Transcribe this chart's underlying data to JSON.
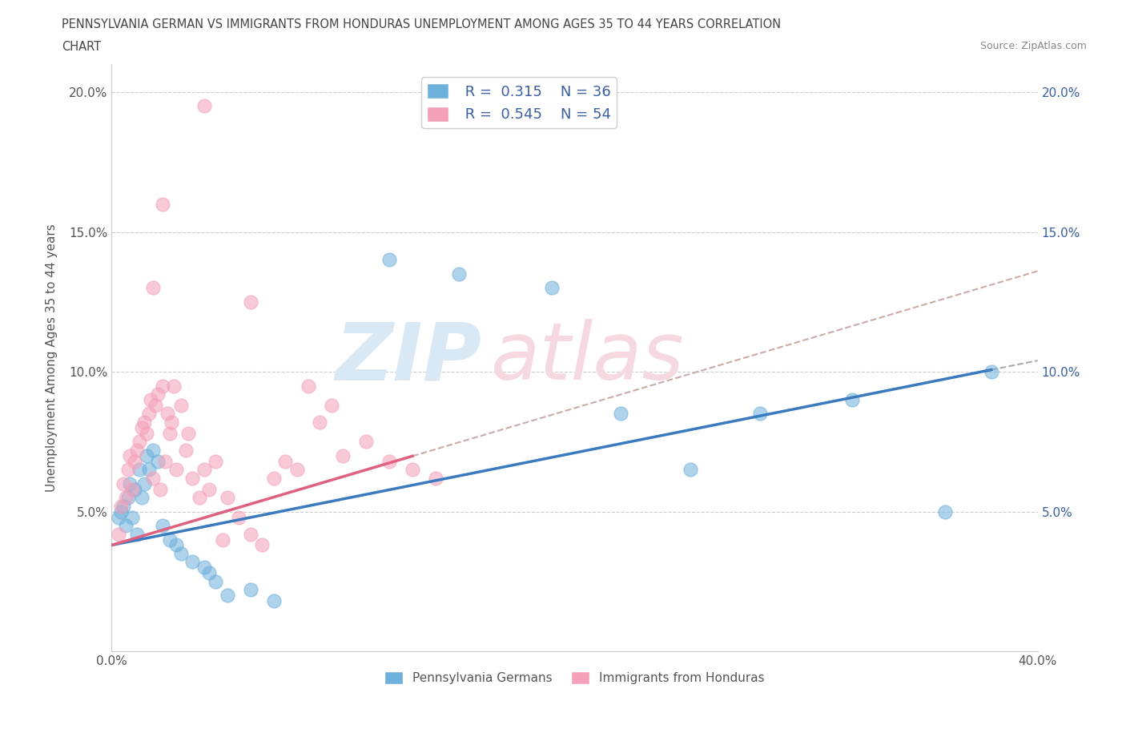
{
  "title_line1": "PENNSYLVANIA GERMAN VS IMMIGRANTS FROM HONDURAS UNEMPLOYMENT AMONG AGES 35 TO 44 YEARS CORRELATION",
  "title_line2": "CHART",
  "source_text": "Source: ZipAtlas.com",
  "ylabel": "Unemployment Among Ages 35 to 44 years",
  "xlim": [
    0.0,
    0.4
  ],
  "ylim": [
    0.0,
    0.21
  ],
  "xticks": [
    0.0,
    0.05,
    0.1,
    0.15,
    0.2,
    0.25,
    0.3,
    0.35,
    0.4
  ],
  "yticks": [
    0.0,
    0.05,
    0.1,
    0.15,
    0.2
  ],
  "blue_color": "#6eb0dc",
  "pink_color": "#f4a0b8",
  "blue_line_color": "#3a7abf",
  "pink_line_color": "#e06080",
  "blue_R": 0.315,
  "blue_N": 36,
  "pink_R": 0.545,
  "pink_N": 54,
  "blue_scatter": [
    [
      0.003,
      0.048
    ],
    [
      0.004,
      0.05
    ],
    [
      0.005,
      0.052
    ],
    [
      0.006,
      0.045
    ],
    [
      0.007,
      0.055
    ],
    [
      0.008,
      0.06
    ],
    [
      0.009,
      0.048
    ],
    [
      0.01,
      0.058
    ],
    [
      0.011,
      0.042
    ],
    [
      0.012,
      0.065
    ],
    [
      0.013,
      0.055
    ],
    [
      0.014,
      0.06
    ],
    [
      0.015,
      0.07
    ],
    [
      0.016,
      0.065
    ],
    [
      0.018,
      0.072
    ],
    [
      0.02,
      0.068
    ],
    [
      0.022,
      0.045
    ],
    [
      0.025,
      0.04
    ],
    [
      0.028,
      0.038
    ],
    [
      0.03,
      0.035
    ],
    [
      0.035,
      0.032
    ],
    [
      0.04,
      0.03
    ],
    [
      0.042,
      0.028
    ],
    [
      0.045,
      0.025
    ],
    [
      0.05,
      0.02
    ],
    [
      0.06,
      0.022
    ],
    [
      0.07,
      0.018
    ],
    [
      0.12,
      0.14
    ],
    [
      0.15,
      0.135
    ],
    [
      0.22,
      0.085
    ],
    [
      0.25,
      0.065
    ],
    [
      0.32,
      0.09
    ],
    [
      0.36,
      0.05
    ],
    [
      0.19,
      0.13
    ],
    [
      0.28,
      0.085
    ],
    [
      0.38,
      0.1
    ]
  ],
  "pink_scatter": [
    [
      0.003,
      0.042
    ],
    [
      0.004,
      0.052
    ],
    [
      0.005,
      0.06
    ],
    [
      0.006,
      0.055
    ],
    [
      0.007,
      0.065
    ],
    [
      0.008,
      0.07
    ],
    [
      0.009,
      0.058
    ],
    [
      0.01,
      0.068
    ],
    [
      0.011,
      0.072
    ],
    [
      0.012,
      0.075
    ],
    [
      0.013,
      0.08
    ],
    [
      0.014,
      0.082
    ],
    [
      0.015,
      0.078
    ],
    [
      0.016,
      0.085
    ],
    [
      0.017,
      0.09
    ],
    [
      0.018,
      0.062
    ],
    [
      0.019,
      0.088
    ],
    [
      0.02,
      0.092
    ],
    [
      0.021,
      0.058
    ],
    [
      0.022,
      0.095
    ],
    [
      0.023,
      0.068
    ],
    [
      0.024,
      0.085
    ],
    [
      0.025,
      0.078
    ],
    [
      0.026,
      0.082
    ],
    [
      0.027,
      0.095
    ],
    [
      0.028,
      0.065
    ],
    [
      0.03,
      0.088
    ],
    [
      0.032,
      0.072
    ],
    [
      0.033,
      0.078
    ],
    [
      0.035,
      0.062
    ],
    [
      0.038,
      0.055
    ],
    [
      0.04,
      0.065
    ],
    [
      0.042,
      0.058
    ],
    [
      0.045,
      0.068
    ],
    [
      0.048,
      0.04
    ],
    [
      0.05,
      0.055
    ],
    [
      0.055,
      0.048
    ],
    [
      0.06,
      0.042
    ],
    [
      0.065,
      0.038
    ],
    [
      0.07,
      0.062
    ],
    [
      0.075,
      0.068
    ],
    [
      0.08,
      0.065
    ],
    [
      0.022,
      0.16
    ],
    [
      0.018,
      0.13
    ],
    [
      0.085,
      0.095
    ],
    [
      0.09,
      0.082
    ],
    [
      0.095,
      0.088
    ],
    [
      0.1,
      0.07
    ],
    [
      0.11,
      0.075
    ],
    [
      0.12,
      0.068
    ],
    [
      0.04,
      0.195
    ],
    [
      0.06,
      0.125
    ],
    [
      0.13,
      0.065
    ],
    [
      0.14,
      0.062
    ]
  ],
  "background_color": "#ffffff",
  "grid_color": "#cccccc",
  "watermark_color": "#d8e8f5",
  "watermark_color2": "#f5d8e0",
  "title_color": "#444444",
  "axis_color": "#555555",
  "legend_color": "#3a5fa0"
}
